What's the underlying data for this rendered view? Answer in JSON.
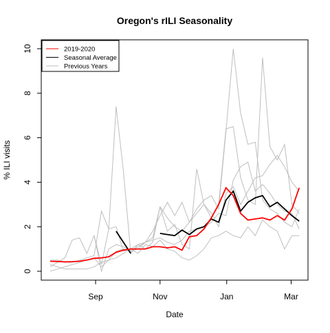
{
  "chart_data": {
    "type": "line",
    "title": "Oregon's rILI Seasonality",
    "xlabel": "Date",
    "ylabel": "% ILI visits",
    "x": [
      0,
      1,
      2,
      3,
      4,
      5,
      6,
      7,
      8,
      9,
      10,
      11,
      12,
      13,
      14,
      15,
      16,
      17,
      18,
      19,
      20,
      21,
      22,
      23,
      24,
      25,
      26,
      27,
      28,
      29,
      30,
      31,
      32,
      33,
      34
    ],
    "xlim": [
      -1.22,
      35.2
    ],
    "xticks": [
      {
        "value": 6.2,
        "label": "Sep"
      },
      {
        "value": 15,
        "label": "Nov"
      },
      {
        "value": 24.1,
        "label": "Jan"
      },
      {
        "value": 32.9,
        "label": "Mar"
      }
    ],
    "ylim": [
      -0.4,
      10.4
    ],
    "yticks": [
      0,
      2,
      4,
      6,
      8,
      10
    ],
    "legend": "topleft",
    "series": [
      {
        "name": "Previous Years",
        "color": "#bebebe",
        "values": [
          [
            0.2,
            0.4,
            0.6,
            1.4,
            1.5,
            0.8,
            1.6,
            0.3,
            1.9,
            7.4,
            4.5,
            0.8,
            1.2,
            1.3,
            1.8,
            2.5,
            3.1,
            2.5,
            3.1,
            2.2,
            2.8,
            3.2,
            3.4,
            2.8,
            6.3,
            10.0,
            7.1,
            5.7,
            5.8,
            3.2,
            2.8,
            2.6,
            2.2,
            2.0,
            2.8
          ],
          [
            0.0,
            0.1,
            0.2,
            0.3,
            0.4,
            0.5,
            0.6,
            0.2,
            0.5,
            0.9,
            1.0,
            0.9,
            1.1,
            1.3,
            1.5,
            2.9,
            2.4,
            2.0,
            1.8,
            2.2,
            2.6,
            3.0,
            2.4,
            3.0,
            6.4,
            6.5,
            4.2,
            3.2,
            3.0,
            9.6,
            5.6,
            5.0,
            5.7,
            3.0,
            2.6
          ],
          [
            0.5,
            0.5,
            0.4,
            0.4,
            0.5,
            0.6,
            0.7,
            2.7,
            1.9,
            2.0,
            0.9,
            1.0,
            1.2,
            1.0,
            1.3,
            2.9,
            1.8,
            2.1,
            1.2,
            1.0,
            4.6,
            3.0,
            2.6,
            2.0,
            3.5,
            3.8,
            3.0,
            3.6,
            4.2,
            4.3,
            4.8,
            5.2,
            4.7,
            4.0,
            3.6
          ],
          [
            0.3,
            0.2,
            0.1,
            0.1,
            0.1,
            0.1,
            0.2,
            0.4,
            0.5,
            0.6,
            0.8,
            1.0,
            0.8,
            1.2,
            1.1,
            1.4,
            1.0,
            0.9,
            0.6,
            0.5,
            0.7,
            1.0,
            1.5,
            1.6,
            1.8,
            1.6,
            1.5,
            2.0,
            1.6,
            2.3,
            2.0,
            1.8,
            1.0,
            1.6,
            1.6
          ],
          [
            null,
            null,
            null,
            null,
            null,
            null,
            1.6,
            0.0,
            1.0,
            1.2,
            1.1,
            0.9,
            1.0,
            1.3,
            1.4,
            1.5,
            1.3,
            1.2,
            1.4,
            1.8,
            1.9,
            2.0,
            2.2,
            2.6,
            2.5,
            4.1,
            4.7,
            4.9,
            3.6,
            3.9,
            3.5,
            3.0,
            2.7,
            2.6,
            1.9
          ]
        ]
      },
      {
        "name": "Seasonal Average",
        "color": "#000000",
        "values": [
          null,
          null,
          null,
          null,
          null,
          null,
          null,
          null,
          null,
          1.8,
          1.3,
          0.8,
          null,
          null,
          null,
          1.7,
          1.65,
          1.6,
          1.85,
          1.65,
          1.9,
          2.0,
          2.35,
          2.2,
          3.2,
          3.6,
          2.7,
          3.1,
          3.3,
          3.4,
          2.9,
          3.1,
          2.8,
          2.5,
          2.25
        ]
      },
      {
        "name": "2019-2020",
        "color": "#ff0000",
        "values": [
          0.45,
          0.44,
          0.42,
          0.43,
          0.45,
          0.5,
          0.58,
          0.6,
          0.65,
          0.85,
          0.95,
          1.0,
          1.0,
          1.0,
          1.1,
          1.1,
          1.05,
          1.1,
          0.95,
          1.55,
          1.6,
          1.9,
          2.4,
          3.0,
          3.75,
          3.4,
          2.6,
          2.3,
          2.35,
          2.4,
          2.3,
          2.5,
          2.3,
          2.8,
          3.75
        ]
      }
    ]
  }
}
